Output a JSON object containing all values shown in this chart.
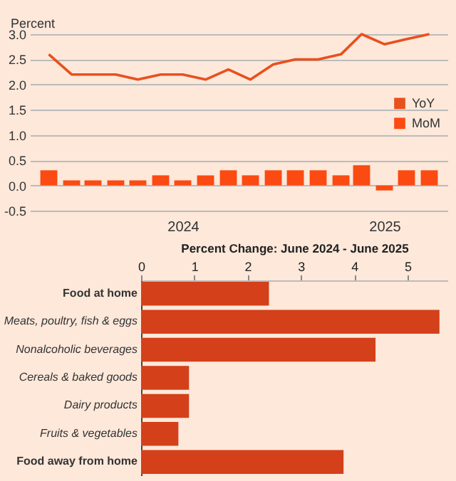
{
  "chart_data": [
    {
      "type": "bar",
      "ylabel": "Percent",
      "x": [
        "2024-01",
        "2024-02",
        "2024-03",
        "2024-04",
        "2024-05",
        "2024-06",
        "2024-07",
        "2024-08",
        "2024-09",
        "2024-10",
        "2024-11",
        "2024-12",
        "2025-01",
        "2025-02",
        "2025-03",
        "2025-04",
        "2025-05",
        "2025-06"
      ],
      "series": [
        {
          "name": "YoY",
          "type": "line",
          "color": "#e8501e",
          "values": [
            2.6,
            2.2,
            2.2,
            2.2,
            2.1,
            2.2,
            2.2,
            2.1,
            2.3,
            2.1,
            2.4,
            2.5,
            2.5,
            2.6,
            3.0,
            2.8,
            2.9,
            3.0
          ]
        },
        {
          "name": "MoM",
          "type": "bar",
          "color": "#fb4a12",
          "values": [
            0.3,
            0.1,
            0.1,
            0.1,
            0.1,
            0.2,
            0.1,
            0.2,
            0.3,
            0.2,
            0.3,
            0.3,
            0.3,
            0.2,
            0.4,
            -0.1,
            0.3,
            0.3
          ]
        }
      ],
      "xlim": [
        "2023-12-16",
        "2025-06-16"
      ],
      "xticks": [
        {
          "value": "2024-07-01",
          "label": "2024"
        },
        {
          "value": "2025-04-01",
          "label": "2025"
        }
      ],
      "ylim": [
        -0.5,
        3.0
      ],
      "yticks": [
        {
          "value": -0.5,
          "label": "-0.5"
        },
        {
          "value": 0,
          "label": "0.0"
        },
        {
          "value": 0.5,
          "label": "0.5"
        },
        {
          "value": 1,
          "label": "1.0"
        },
        {
          "value": 1.5,
          "label": "1.5"
        },
        {
          "value": 2,
          "label": "2.0"
        },
        {
          "value": 2.5,
          "label": "2.5"
        },
        {
          "value": 3,
          "label": "3.0"
        }
      ],
      "grid": "y",
      "legend": "right"
    },
    {
      "type": "bar",
      "orientation": "horizontal",
      "xlabel": "Percent Change: June 2024 - June 2025",
      "categories": [
        "Food at home",
        "Meats, poultry, fish & eggs",
        "Nonalcoholic beverages",
        "Cereals & baked goods",
        "Dairy products",
        "Fruits & vegetables",
        "Food away from home"
      ],
      "values": [
        2.4,
        5.6,
        4.4,
        0.9,
        0.9,
        0.7,
        3.8
      ],
      "color": "#d3401a",
      "xlim": [
        0,
        5.75
      ],
      "xticks": [
        0,
        1,
        2,
        3,
        4,
        5
      ],
      "grid": false
    }
  ]
}
